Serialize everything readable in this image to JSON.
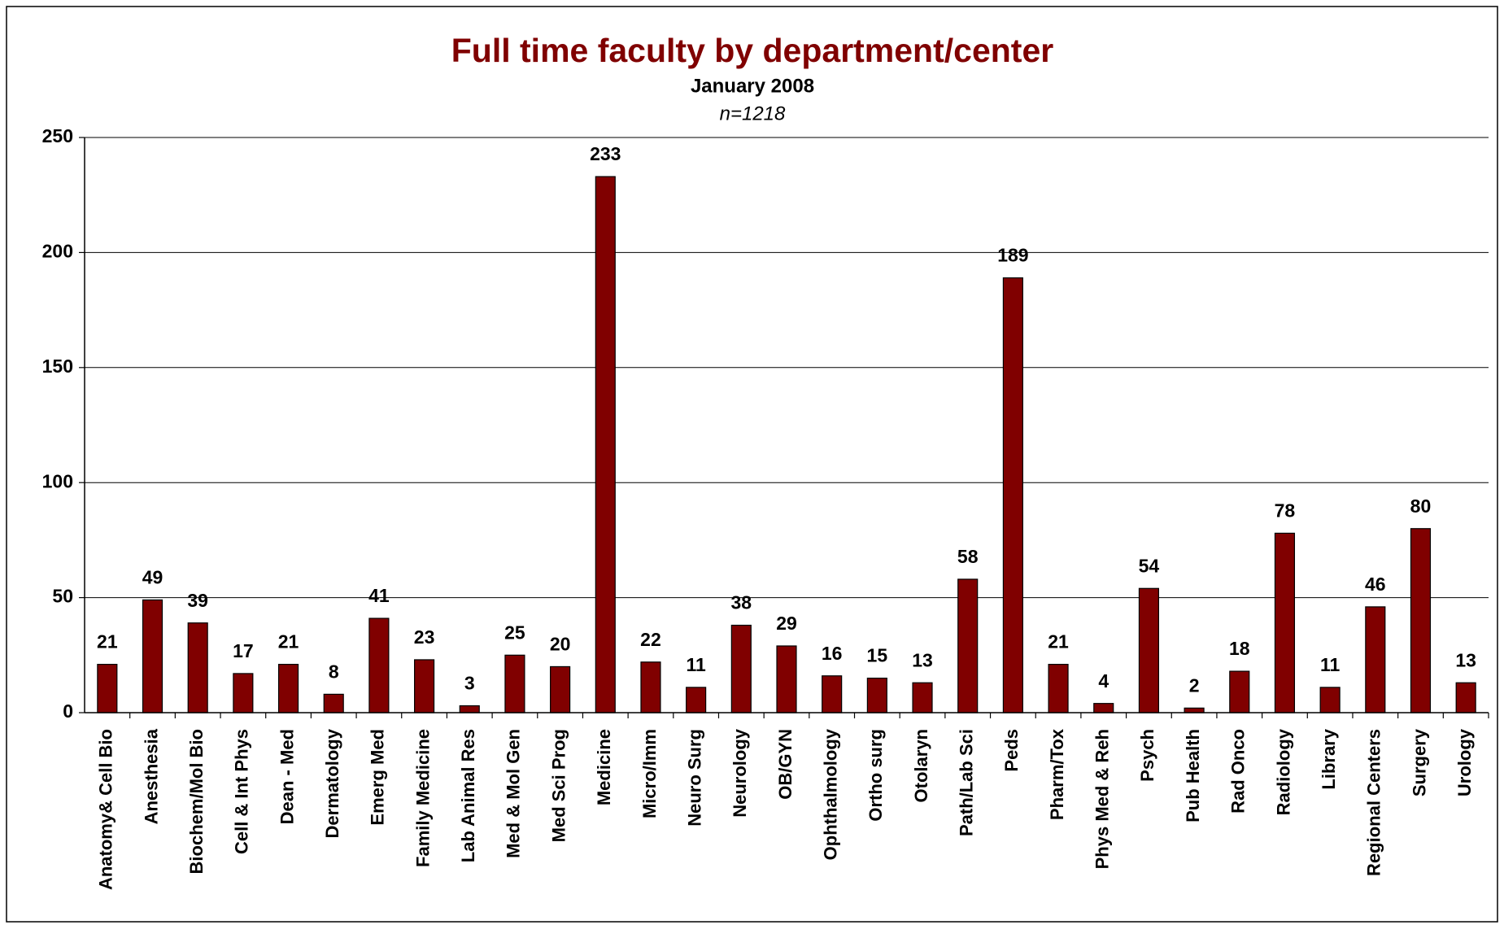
{
  "chart_data": {
    "type": "bar",
    "title": "Full time faculty by department/center",
    "subtitle": "January 2008",
    "note": "n=1218",
    "categories": [
      "Anatomy& Cell Bio",
      "Anesthesia",
      "Biochem/Mol Bio",
      "Cell & Int Phys",
      "Dean - Med",
      "Dermatology",
      "Emerg Med",
      "Family Medicine",
      "Lab Animal Res",
      "Med & Mol Gen",
      "Med Sci Prog",
      "Medicine",
      "Micro/Imm",
      "Neuro Surg",
      "Neurology",
      "OB/GYN",
      "Ophthalmology",
      "Ortho surg",
      "Otolaryn",
      "Path/Lab Sci",
      "Peds",
      "Pharm/Tox",
      "Phys Med & Reh",
      "Psych",
      "Pub Health",
      "Rad Onco",
      "Radiology",
      "Library",
      "Regional Centers",
      "Surgery",
      "Urology"
    ],
    "values": [
      21,
      49,
      39,
      17,
      21,
      8,
      41,
      23,
      3,
      25,
      20,
      233,
      22,
      11,
      38,
      29,
      16,
      15,
      13,
      58,
      189,
      21,
      4,
      54,
      2,
      18,
      78,
      11,
      46,
      80,
      13
    ],
    "color": "#800000",
    "ylim": [
      0,
      250
    ],
    "yticks": [
      0,
      50,
      100,
      150,
      200,
      250
    ],
    "grid": true
  }
}
